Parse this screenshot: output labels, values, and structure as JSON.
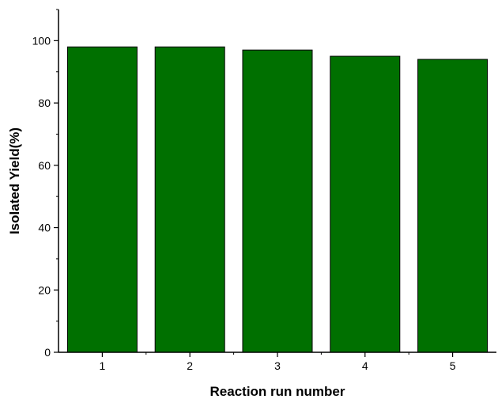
{
  "chart_data": {
    "type": "bar",
    "categories": [
      "1",
      "2",
      "3",
      "4",
      "5"
    ],
    "values": [
      98,
      98,
      97,
      95,
      94
    ],
    "title": "",
    "xlabel": "Reaction run number",
    "ylabel": "Isolated Yield(%)",
    "ylim": [
      0,
      110
    ],
    "yticks": [
      0,
      20,
      40,
      60,
      80,
      100
    ],
    "yticklabels": [
      "0",
      "20",
      "40",
      "60",
      "80",
      "100"
    ],
    "y_minor_step": 10,
    "grid": false,
    "legend": "none",
    "bar_color": "#007000",
    "bar_edge_color": "#000000",
    "axis_color": "#000000"
  }
}
